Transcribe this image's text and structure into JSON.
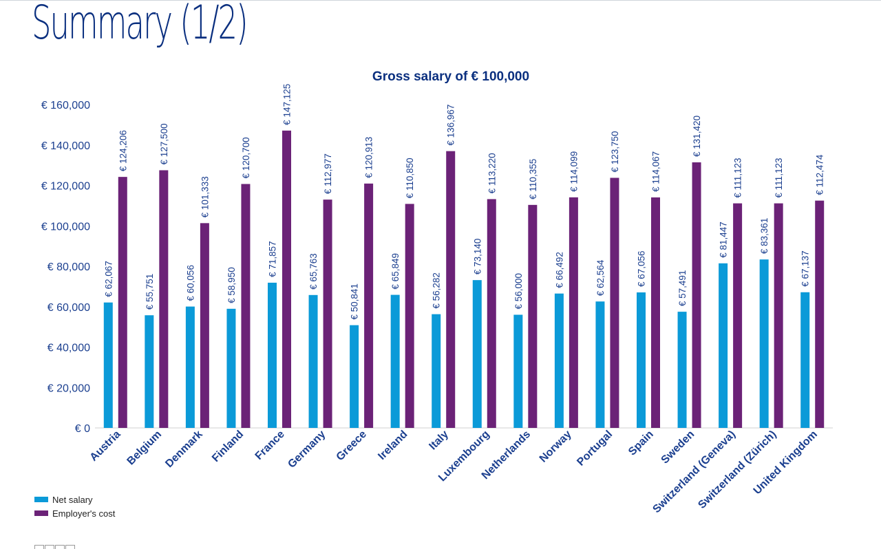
{
  "page": {
    "title": "Summary (1/2)"
  },
  "colors": {
    "net": "#0b9ad8",
    "cost": "#6b2277",
    "axis_text": "#1b3f8f",
    "title": "#0a2f7f"
  },
  "legend": [
    {
      "label": "Net salary",
      "color": "#0b9ad8"
    },
    {
      "label": "Employer's cost",
      "color": "#6b2277"
    }
  ],
  "chart_data": {
    "type": "bar",
    "title": "Gross salary of € 100,000",
    "categories": [
      "Austria",
      "Belgium",
      "Denmark",
      "Finland",
      "France",
      "Germany",
      "Greece",
      "Ireland",
      "Italy",
      "Luxembourg",
      "Netherlands",
      "Norway",
      "Portugal",
      "Spain",
      "Sweden",
      "Switzerland (Geneva)",
      "Switzerland (Zürich)",
      "United Kingdom"
    ],
    "series": [
      {
        "name": "Net salary",
        "values": [
          62067,
          55751,
          60056,
          58950,
          71857,
          65763,
          50841,
          65849,
          56282,
          73140,
          56000,
          66492,
          62564,
          67056,
          57491,
          81447,
          83361,
          67137
        ],
        "labels": [
          "€ 62,067",
          "€ 55,751",
          "€ 60,056",
          "€ 58,950",
          "€ 71,857",
          "€ 65,763",
          "€ 50,841",
          "€ 65,849",
          "€ 56,282",
          "€ 73,140",
          "€ 56,000",
          "€ 66,492",
          "€ 62,564",
          "€ 67,056",
          "€ 57,491",
          "€ 81,447",
          "€ 83,361",
          "€ 67,137"
        ]
      },
      {
        "name": "Employer's cost",
        "values": [
          124206,
          127500,
          101333,
          120700,
          147125,
          112977,
          120913,
          110850,
          136967,
          113220,
          110355,
          114099,
          123750,
          114067,
          131420,
          111123,
          111123,
          112474
        ],
        "labels": [
          "€ 124,206",
          "€ 127,500",
          "€ 101,333",
          "€ 120,700",
          "€ 147,125",
          "€ 112,977",
          "€ 120,913",
          "€ 110,850",
          "€ 136,967",
          "€ 113,220",
          "€ 110,355",
          "€ 114,099",
          "€ 123,750",
          "€ 114,067",
          "€ 131,420",
          "€ 111,123",
          "€ 111,123",
          "€ 112,474"
        ]
      }
    ],
    "yticks": [
      "€ 0",
      "€ 20,000",
      "€ 40,000",
      "€ 60,000",
      "€ 80,000",
      "€ 100,000",
      "€ 120,000",
      "€ 140,000",
      "€ 160,000"
    ],
    "ylim": [
      0,
      160000
    ],
    "grid": false,
    "legend_position": "bottom-left"
  }
}
